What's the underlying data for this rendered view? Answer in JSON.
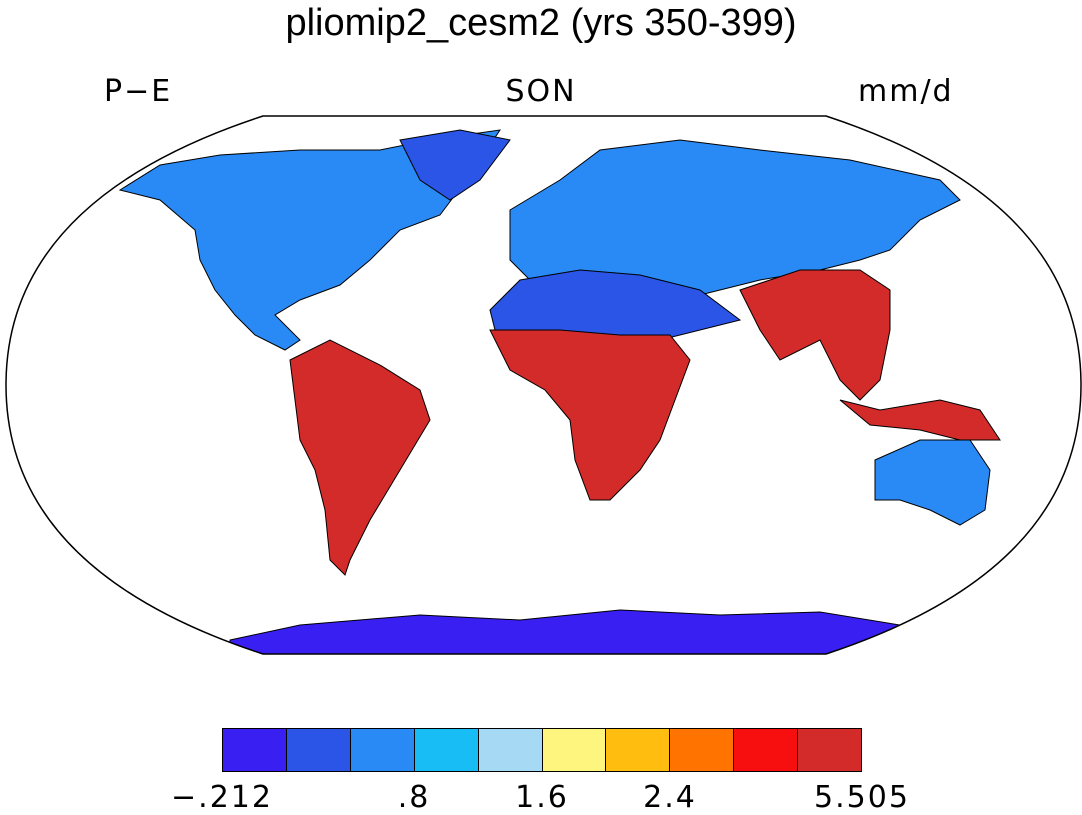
{
  "header": {
    "title": "pliomip2_cesm2 (yrs 350-399)",
    "variable": "P−E",
    "season": "SON",
    "units": "mm/d"
  },
  "legend": {
    "colors": [
      "#3a1ff2",
      "#2a55e6",
      "#2a8af5",
      "#19bdf5",
      "#a6d9f3",
      "#fdf57e",
      "#ffbd10",
      "#ff7400",
      "#f70f0f",
      "#d32a2a"
    ],
    "labels": [
      "−.212",
      ".8",
      "1.6",
      "2.4",
      "5.505"
    ]
  }
}
